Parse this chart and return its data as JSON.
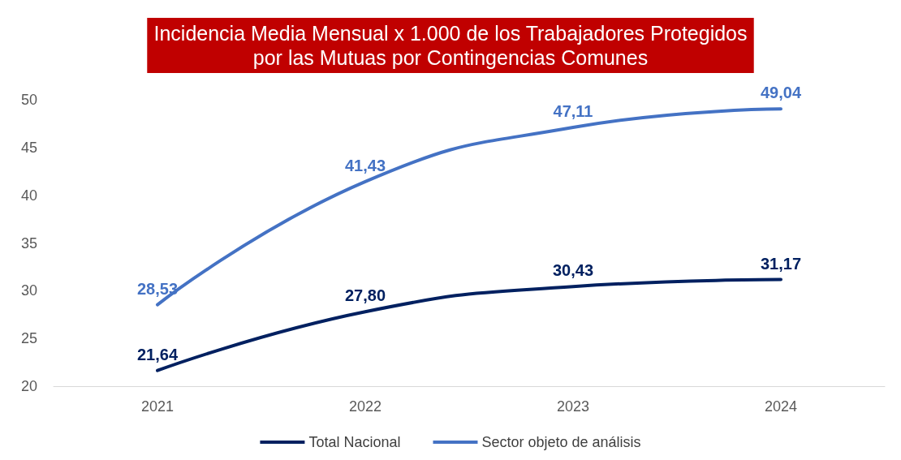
{
  "chart_data": {
    "type": "line",
    "title": "Incidencia Media Mensual x 1.000 de los Trabajadores Protegidos\npor las Mutuas por Contingencias Comunes",
    "categories": [
      "2021",
      "2022",
      "2023",
      "2024"
    ],
    "series": [
      {
        "name": "Total Nacional",
        "color": "#002060",
        "values": [
          21.64,
          27.8,
          30.43,
          31.17
        ],
        "value_labels": [
          "21,64",
          "27,80",
          "30,43",
          "31,17"
        ]
      },
      {
        "name": "Sector objeto de análisis",
        "color": "#4472c4",
        "values": [
          28.53,
          41.43,
          47.11,
          49.04
        ],
        "value_labels": [
          "28,53",
          "41,43",
          "47,11",
          "49,04"
        ]
      }
    ],
    "ylim": [
      20,
      50
    ],
    "yticks": [
      20,
      25,
      30,
      35,
      40,
      45,
      50
    ],
    "grid": false,
    "legend": "bottom",
    "marker": "none",
    "line_style": "solid"
  }
}
